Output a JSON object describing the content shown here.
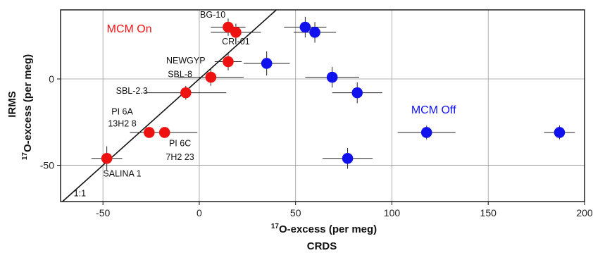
{
  "chart_data": {
    "type": "scatter",
    "x_title_super": "17",
    "x_title_main": "O-excess (per meg)",
    "x_title_method": "CRDS",
    "y_title_super": "17",
    "y_title_main": "O-excess (per meg)",
    "y_title_method": "IRMS",
    "xlim": [
      -72,
      200
    ],
    "ylim": [
      -71,
      40
    ],
    "xticks": [
      -50,
      0,
      50,
      100,
      150,
      200
    ],
    "yticks": [
      -50,
      0
    ],
    "grid": true,
    "reference_line": {
      "label": "1:1",
      "slope": 1,
      "intercept": 0
    },
    "groups": [
      {
        "label": "MCM On",
        "color": "#ee1111",
        "label_pos": [
          -48,
          27
        ],
        "points": [
          {
            "x": 15,
            "y": 30,
            "xerr": 9,
            "yerr": 5
          },
          {
            "x": 19,
            "y": 27,
            "xerr": 13,
            "yerr": 5
          },
          {
            "x": 15,
            "y": 10,
            "xerr": 7,
            "yerr": 5
          },
          {
            "x": 6,
            "y": 1,
            "xerr": 17,
            "yerr": 5
          },
          {
            "x": -7,
            "y": -8,
            "xerr": 21,
            "yerr": 4
          },
          {
            "x": -26,
            "y": -31,
            "xerr": 10,
            "yerr": 3
          },
          {
            "x": -18,
            "y": -31,
            "xerr": 17,
            "yerr": 3
          },
          {
            "x": -48,
            "y": -46,
            "xerr": 8,
            "yerr": 7
          }
        ]
      },
      {
        "label": "MCM Off",
        "color": "#1111ee",
        "label_pos": [
          110,
          -20
        ],
        "points": [
          {
            "x": 55,
            "y": 30,
            "xerr": 11,
            "yerr": 6
          },
          {
            "x": 60,
            "y": 27,
            "xerr": 11,
            "yerr": 6
          },
          {
            "x": 35,
            "y": 9,
            "xerr": 12,
            "yerr": 7
          },
          {
            "x": 69,
            "y": 1,
            "xerr": 14,
            "yerr": 6
          },
          {
            "x": 82,
            "y": -8,
            "xerr": 13,
            "yerr": 6
          },
          {
            "x": 118,
            "y": -31,
            "xerr": 15,
            "yerr": 4
          },
          {
            "x": 187,
            "y": -31,
            "xerr": 8,
            "yerr": 4
          },
          {
            "x": 77,
            "y": -46,
            "xerr": 13,
            "yerr": 6
          }
        ]
      }
    ],
    "point_labels": [
      {
        "text": "BG-10",
        "x": 7,
        "y": 35.5,
        "anchor": "middle"
      },
      {
        "text": "CRI-01",
        "x": 19,
        "y": 20,
        "anchor": "middle"
      },
      {
        "text": "NEWGYP",
        "x": -7,
        "y": 9,
        "anchor": "middle"
      },
      {
        "text": "SBL-8",
        "x": -10,
        "y": 1,
        "anchor": "middle"
      },
      {
        "text": "SBL-2.3",
        "x": -35,
        "y": -8.5,
        "anchor": "middle"
      },
      {
        "text": "PI 6A",
        "x": -40,
        "y": -20.5,
        "anchor": "middle"
      },
      {
        "text": "13H2 8",
        "x": -40,
        "y": -27.5,
        "anchor": "middle"
      },
      {
        "text": "PI 6C",
        "x": -10,
        "y": -39,
        "anchor": "middle"
      },
      {
        "text": "7H2 23",
        "x": -10,
        "y": -47,
        "anchor": "middle"
      },
      {
        "text": "SALINA 1",
        "x": -40,
        "y": -56.5,
        "anchor": "middle"
      },
      {
        "text": "1:1",
        "x": -62,
        "y": -68,
        "anchor": "middle"
      }
    ]
  }
}
